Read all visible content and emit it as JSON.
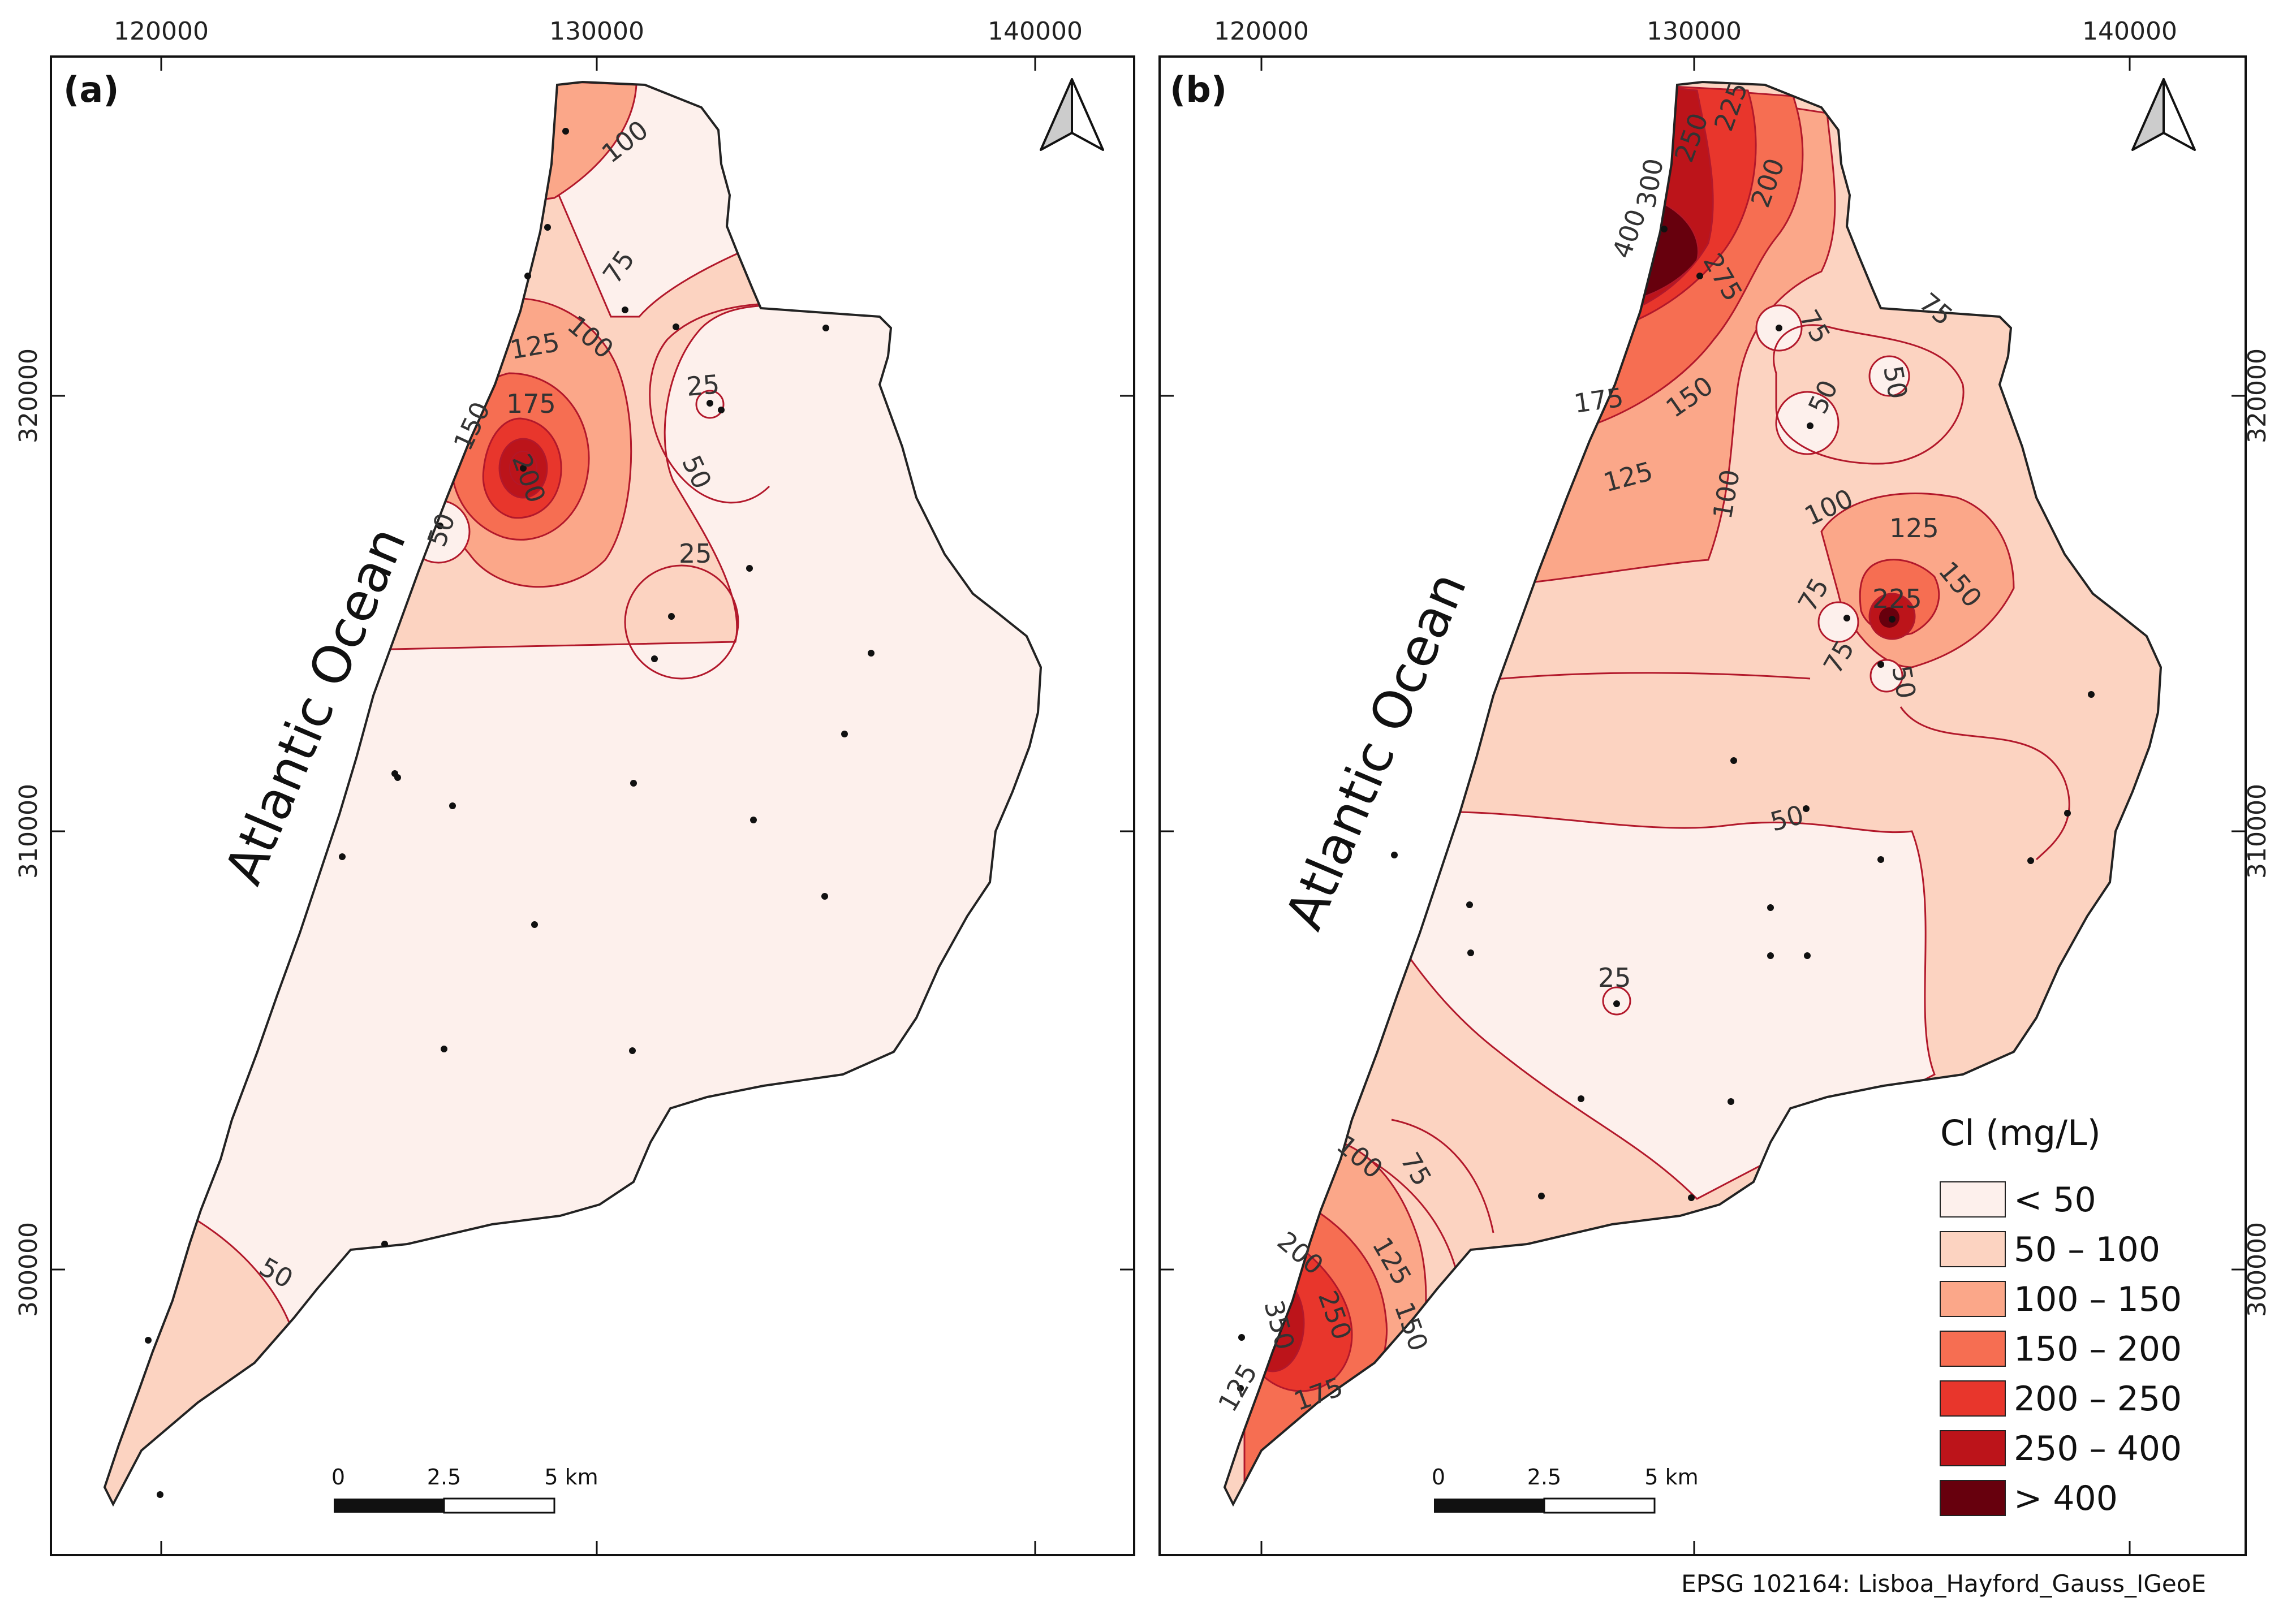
{
  "panels": [
    {
      "label": "(a)",
      "x_ticks": [
        "120000",
        "130000",
        "140000"
      ],
      "y_ticks": [
        "320000",
        "310000",
        "300000"
      ],
      "ocean_label": "Atlantic Ocean",
      "contour_labels": [
        "100",
        "75",
        "100",
        "125",
        "175",
        "150",
        "200",
        "50",
        "25",
        "50",
        "25",
        "50"
      ],
      "scale": {
        "labels": [
          "0",
          "2.5",
          "5 km"
        ]
      }
    },
    {
      "label": "(b)",
      "x_ticks": [
        "120000",
        "130000",
        "140000"
      ],
      "y_ticks": [
        "320000",
        "310000",
        "300000"
      ],
      "ocean_label": "Atlantic Ocean",
      "contour_labels": [
        "250",
        "225",
        "200",
        "300",
        "400",
        "275",
        "75",
        "75",
        "50",
        "50",
        "175",
        "150",
        "125",
        "100",
        "100",
        "125",
        "150",
        "225",
        "75",
        "75",
        "50",
        "50",
        "25",
        "100",
        "75",
        "200",
        "125",
        "350",
        "250",
        "150",
        "125",
        "175"
      ],
      "scale": {
        "labels": [
          "0",
          "2.5",
          "5 km"
        ]
      }
    }
  ],
  "legend": {
    "title": "Cl (mg/L)",
    "classes": [
      {
        "label": "< 50",
        "color": "#fdf0ec"
      },
      {
        "label": "50 – 100",
        "color": "#fcd3c1"
      },
      {
        "label": "100 – 150",
        "color": "#fba789"
      },
      {
        "label": "150 – 200",
        "color": "#f66e52"
      },
      {
        "label": "200 – 250",
        "color": "#e8362c"
      },
      {
        "label": "250 – 400",
        "color": "#bc141a"
      },
      {
        "label": "> 400",
        "color": "#67000d"
      }
    ]
  },
  "crs_note": "EPSG 102164: Lisboa_Hayford_Gauss_IGeoE",
  "icons": [
    "north-arrow-icon"
  ],
  "colors": {
    "contour": "#b2182b",
    "coast": "#222222"
  }
}
